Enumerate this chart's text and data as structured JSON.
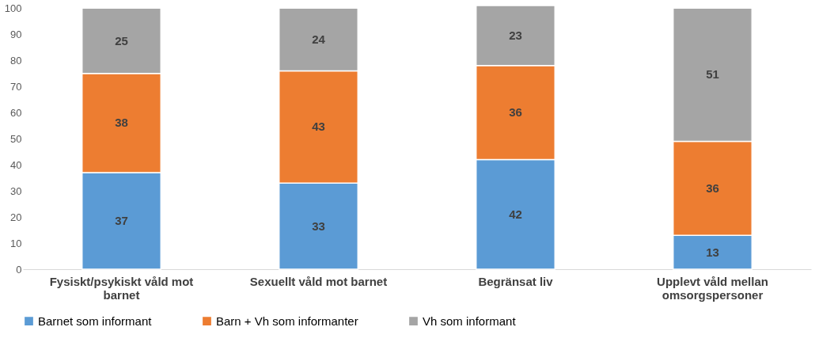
{
  "chart_data": {
    "type": "bar",
    "stacked": true,
    "categories": [
      "Fysiskt/psykiskt våld mot barnet",
      "Sexuellt våld mot barnet",
      "Begränsat liv",
      "Upplevt våld mellan omsorgspersoner"
    ],
    "series": [
      {
        "name": "Barnet som informant",
        "color": "#5b9bd5",
        "values": [
          37,
          33,
          42,
          13
        ]
      },
      {
        "name": "Barn + Vh som informanter",
        "color": "#ed7d31",
        "values": [
          38,
          43,
          36,
          36
        ]
      },
      {
        "name": "Vh som informant",
        "color": "#a5a5a5",
        "values": [
          25,
          24,
          23,
          51
        ]
      }
    ],
    "ylim": [
      0,
      101
    ],
    "yticks": [
      0,
      10,
      20,
      30,
      40,
      50,
      60,
      70,
      80,
      90,
      100
    ],
    "grid": false,
    "legend": "bottom",
    "data_labels": true
  }
}
